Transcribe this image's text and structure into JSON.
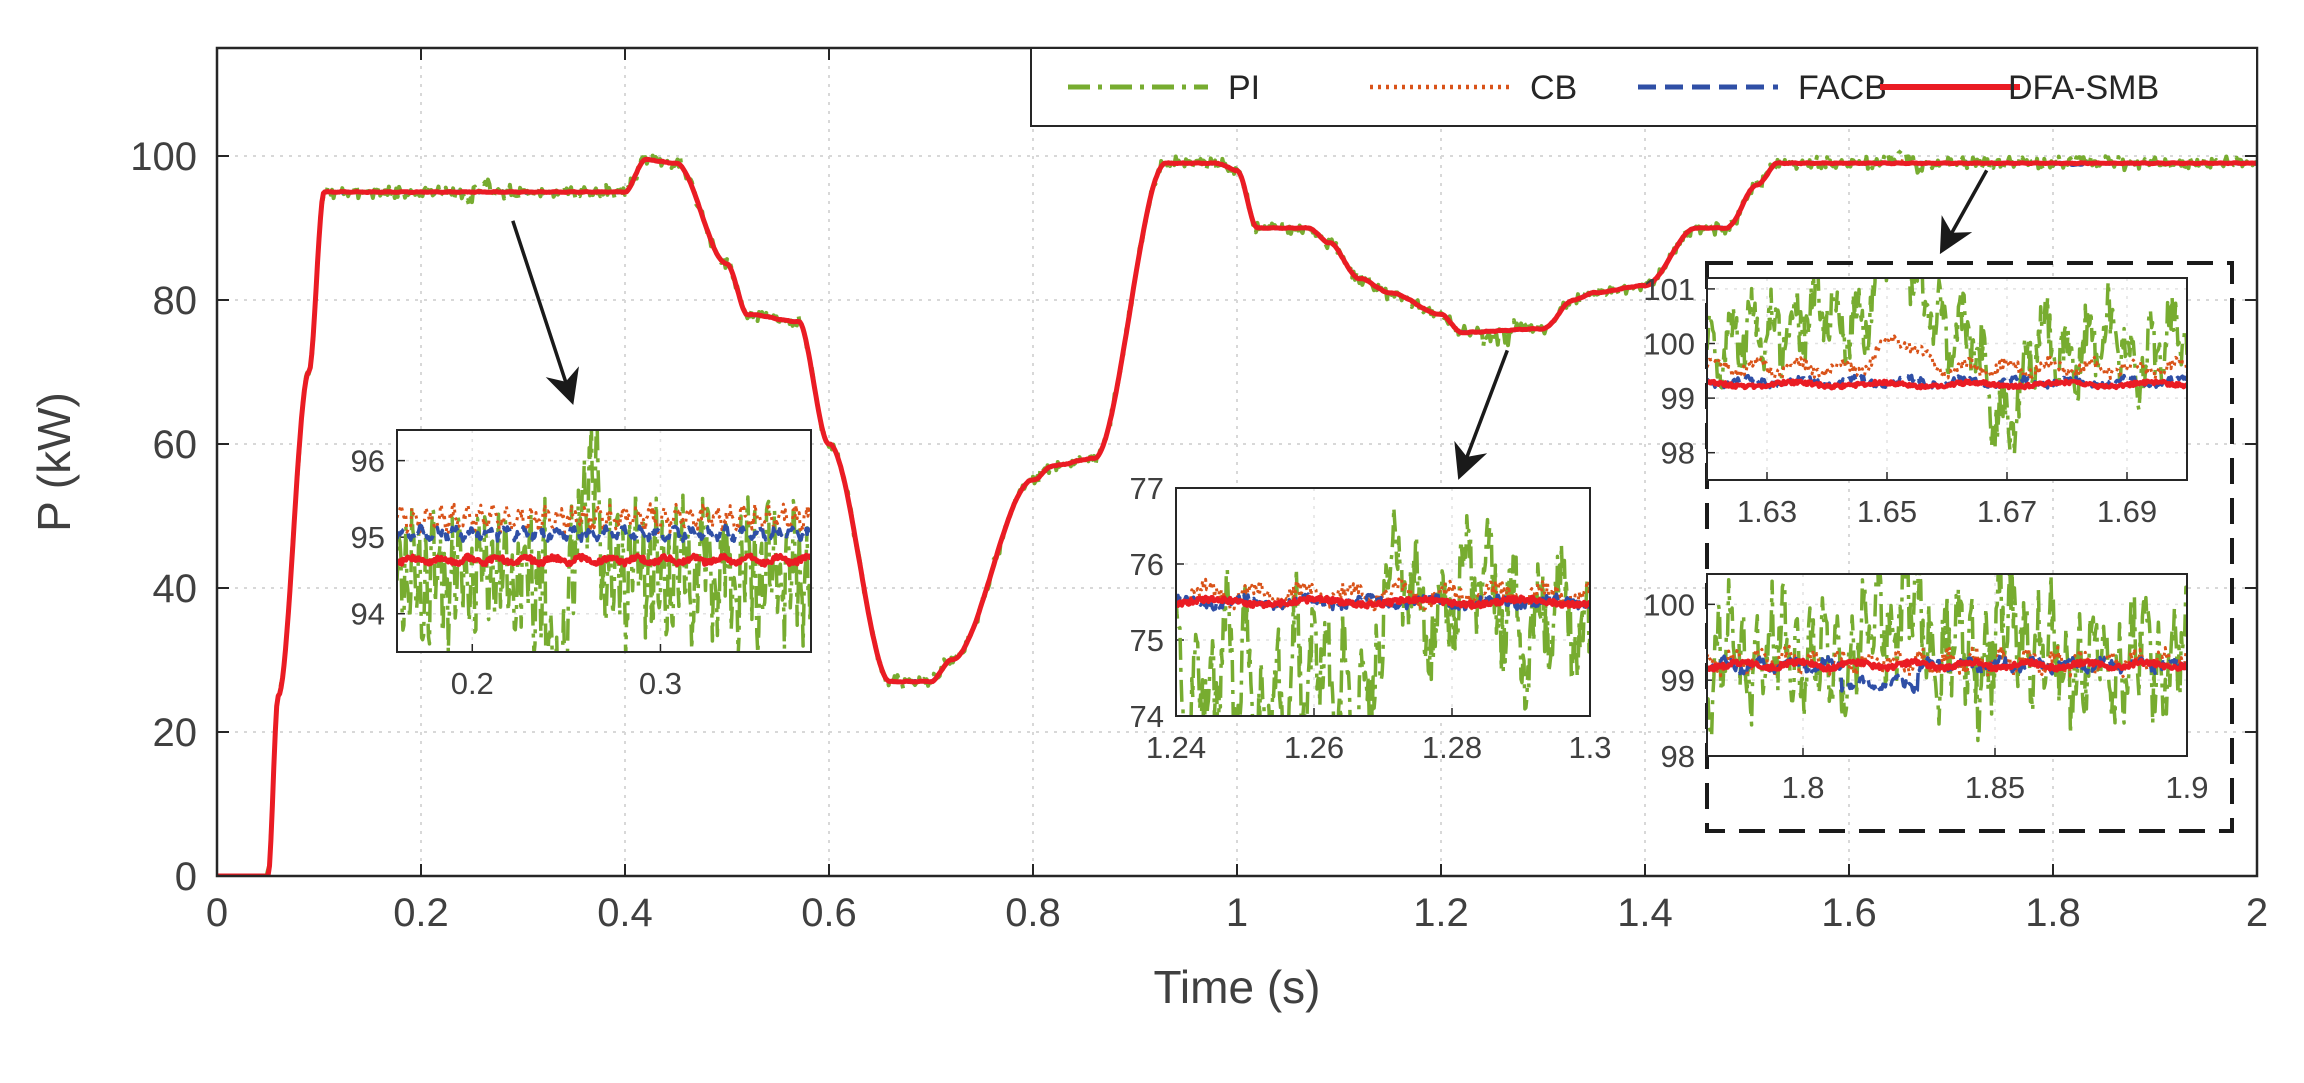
{
  "chart_data": {
    "type": "line",
    "xlabel": "Time (s)",
    "ylabel": "P (kW)",
    "xlim": [
      0,
      2
    ],
    "ylim": [
      0,
      115
    ],
    "xticks": [
      "0",
      "0.2",
      "0.4",
      "0.6",
      "0.8",
      "1",
      "1.2",
      "1.4",
      "1.6",
      "1.8",
      "2"
    ],
    "yticks": [
      "0",
      "20",
      "40",
      "60",
      "80",
      "100"
    ],
    "grid": true,
    "legend": {
      "position": "top-right",
      "entries": [
        "PI",
        "CB",
        "FACB",
        "DFA-SMB"
      ]
    },
    "colors": {
      "PI": "#77ac30",
      "CB": "#d95319",
      "FACB": "#2f4fa6",
      "DFA-SMB": "#ea1c24"
    },
    "reference_profile": {
      "description_free": true,
      "t": [
        0,
        0.05,
        0.06,
        0.09,
        0.105,
        0.4,
        0.42,
        0.45,
        0.5,
        0.52,
        0.57,
        0.6,
        0.66,
        0.7,
        0.72,
        0.8,
        0.82,
        0.86,
        0.93,
        0.98,
        1.0,
        1.02,
        1.07,
        1.09,
        1.12,
        1.15,
        1.2,
        1.22,
        1.3,
        1.33,
        1.35,
        1.4,
        1.45,
        1.48,
        1.51,
        1.53,
        2.0
      ],
      "P": [
        0,
        0,
        25,
        70,
        95,
        95,
        99.5,
        99,
        85,
        78,
        77,
        60,
        27,
        27,
        30,
        55,
        57,
        58,
        99,
        99,
        98,
        90,
        90,
        88,
        83,
        81,
        78,
        75.5,
        76,
        80,
        81,
        82,
        90,
        90,
        96,
        99,
        99
      ]
    },
    "insets": [
      {
        "id": "inset1",
        "xlim": [
          0.16,
          0.38
        ],
        "ylim": [
          93.5,
          96.4
        ],
        "xticks": [
          "0.2",
          "0.3"
        ],
        "yticks": [
          "94",
          "95",
          "96"
        ],
        "arrow_from_t": 0.29,
        "arrow_from_P": 91
      },
      {
        "id": "inset2",
        "xlim": [
          1.24,
          1.3
        ],
        "ylim": [
          74,
          77
        ],
        "xticks": [
          "1.24",
          "1.26",
          "1.28",
          "1.3"
        ],
        "yticks": [
          "74",
          "75",
          "76",
          "77"
        ],
        "arrow_from_t": 1.265,
        "arrow_from_P": 73
      },
      {
        "id": "inset3a",
        "xlim": [
          1.62,
          1.7
        ],
        "ylim": [
          97.5,
          101.2
        ],
        "xticks": [
          "1.63",
          "1.65",
          "1.67",
          "1.69"
        ],
        "yticks": [
          "98",
          "99",
          "100",
          "101"
        ]
      },
      {
        "id": "inset3b",
        "xlim": [
          1.775,
          1.9
        ],
        "ylim": [
          98,
          100.4
        ],
        "xticks": [
          "1.8",
          "1.85",
          "1.9"
        ],
        "yticks": [
          "98",
          "99",
          "100"
        ],
        "arrow_from_t": 1.735,
        "arrow_from_P": 98
      }
    ]
  }
}
